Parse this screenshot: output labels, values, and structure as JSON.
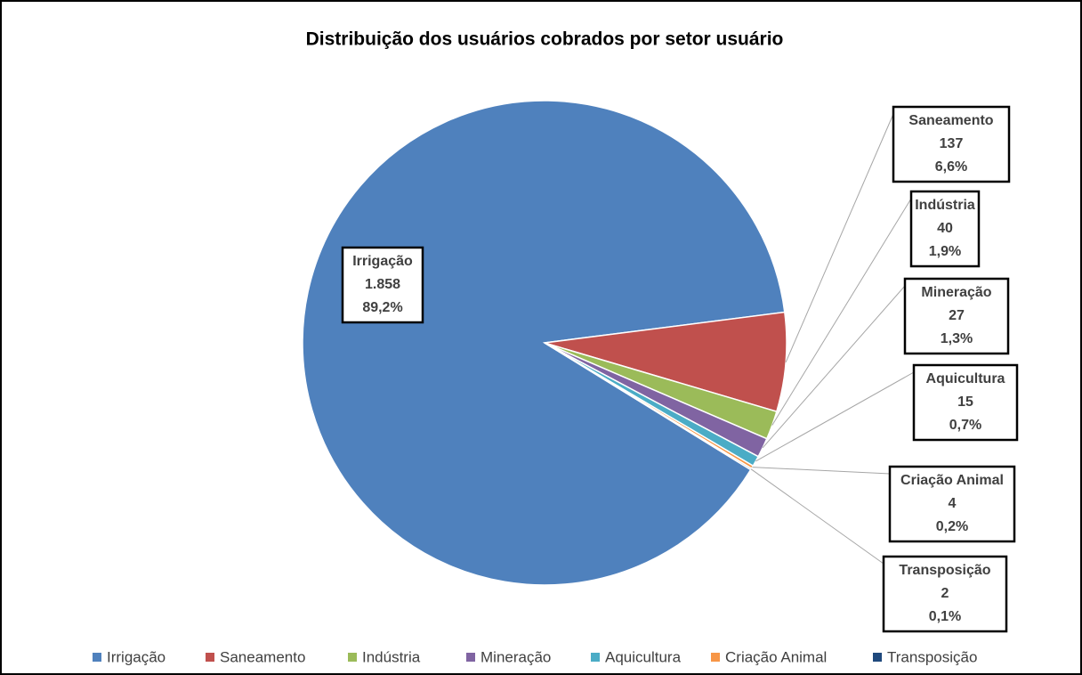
{
  "chart_data": {
    "type": "pie",
    "title": "Distribuição dos usuários cobrados por setor usuário",
    "categories": [
      "Irrigação",
      "Saneamento",
      "Indústria",
      "Mineração",
      "Aquicultura",
      "Criação Animal",
      "Transposição"
    ],
    "values": [
      1858,
      137,
      40,
      27,
      15,
      4,
      2
    ],
    "value_labels": [
      "1.858",
      "137",
      "40",
      "27",
      "15",
      "4",
      "2"
    ],
    "percentages": [
      89.2,
      6.6,
      1.9,
      1.3,
      0.7,
      0.2,
      0.1
    ],
    "percentage_labels": [
      "89,2%",
      "6,6%",
      "1,9%",
      "1,3%",
      "0,7%",
      "0,2%",
      "0,1%"
    ],
    "colors": [
      "#4f81bd",
      "#c0504d",
      "#9bbb59",
      "#8064a2",
      "#4bacc6",
      "#f79646",
      "#1f497d"
    ],
    "legend": "bottom"
  }
}
